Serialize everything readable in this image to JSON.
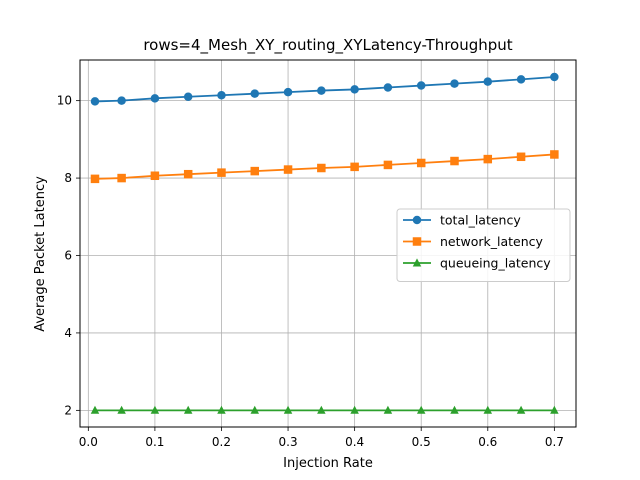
{
  "chart_data": {
    "type": "line",
    "title": "rows=4_Mesh_XY_routing_XYLatency-Throughput",
    "xlabel": "Injection Rate",
    "ylabel": "Average Packet Latency",
    "xlim": [
      -0.0125,
      0.7325
    ],
    "ylim": [
      1.57,
      11.05
    ],
    "xticks": [
      0.0,
      0.1,
      0.2,
      0.3,
      0.4,
      0.5,
      0.6,
      0.7
    ],
    "xtick_labels": [
      "0.0",
      "0.1",
      "0.2",
      "0.3",
      "0.4",
      "0.5",
      "0.6",
      "0.7"
    ],
    "yticks": [
      2,
      4,
      6,
      8,
      10
    ],
    "ytick_labels": [
      "2",
      "4",
      "6",
      "8",
      "10"
    ],
    "grid": true,
    "legend_position": "center-right",
    "x": [
      0.01,
      0.05,
      0.1,
      0.15,
      0.2,
      0.25,
      0.3,
      0.35,
      0.4,
      0.45,
      0.5,
      0.55,
      0.6,
      0.65,
      0.7
    ],
    "series": [
      {
        "name": "total_latency",
        "color": "#1f77b4",
        "marker": "circle",
        "values": [
          9.98,
          10.0,
          10.06,
          10.1,
          10.14,
          10.18,
          10.22,
          10.26,
          10.29,
          10.34,
          10.39,
          10.44,
          10.49,
          10.55,
          10.61
        ]
      },
      {
        "name": "network_latency",
        "color": "#ff7f0e",
        "marker": "square",
        "values": [
          7.98,
          8.0,
          8.06,
          8.1,
          8.14,
          8.18,
          8.22,
          8.26,
          8.29,
          8.34,
          8.39,
          8.44,
          8.49,
          8.55,
          8.61
        ]
      },
      {
        "name": "queueing_latency",
        "color": "#2ca02c",
        "marker": "triangle",
        "values": [
          2.0,
          2.0,
          2.0,
          2.0,
          2.0,
          2.0,
          2.0,
          2.0,
          2.0,
          2.0,
          2.0,
          2.0,
          2.0,
          2.0,
          2.0
        ]
      }
    ]
  }
}
